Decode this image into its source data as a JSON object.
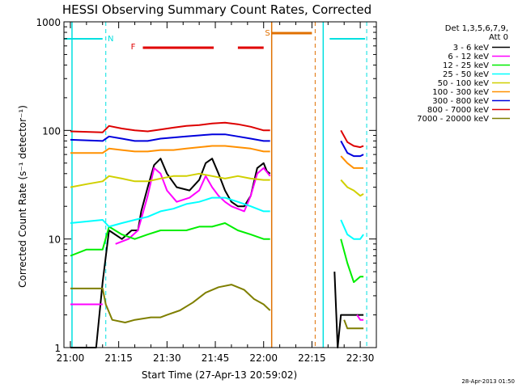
{
  "chart_data": {
    "type": "line",
    "title": "HESSI Observing Summary Count Rates, Corrected",
    "xlabel": "Start Time (27-Apr-13 20:59:02)",
    "ylabel": "Corrected Count Rate (s⁻¹ detector⁻¹)",
    "yscale": "log",
    "ylim": [
      1,
      1000
    ],
    "xlim_minutes": [
      -2,
      95
    ],
    "x_tick_labels": [
      "21:00",
      "21:15",
      "21:30",
      "21:45",
      "22:00",
      "22:15",
      "22:30"
    ],
    "x_tick_minutes": [
      0,
      15,
      30,
      45,
      60,
      75,
      90
    ],
    "y_tick_labels": [
      "1",
      "10",
      "100",
      "1000"
    ],
    "y_tick_values": [
      1,
      10,
      100,
      1000
    ],
    "grid": false,
    "legend_position": "right",
    "legend_header": [
      "Det 1,3,5,6,7,9,",
      "Att 0"
    ],
    "footer_date": "28-Apr-2013 01:50",
    "annotations": [
      {
        "text": "N",
        "color": "#00e0e0"
      },
      {
        "text": "F",
        "color": "#e00000"
      },
      {
        "text": "S",
        "color": "#e07000"
      }
    ],
    "series": [
      {
        "name": "3 - 6 keV",
        "color": "#000000",
        "points": [
          [
            0,
            1
          ],
          [
            8,
            1
          ],
          [
            10,
            4
          ],
          [
            12,
            12
          ],
          [
            16,
            10
          ],
          [
            19,
            12
          ],
          [
            21,
            12
          ],
          [
            22,
            18
          ],
          [
            24,
            30
          ],
          [
            26,
            48
          ],
          [
            28,
            55
          ],
          [
            30,
            40
          ],
          [
            33,
            30
          ],
          [
            37,
            28
          ],
          [
            40,
            35
          ],
          [
            42,
            50
          ],
          [
            44,
            55
          ],
          [
            46,
            40
          ],
          [
            48,
            28
          ],
          [
            50,
            22
          ],
          [
            52,
            20
          ],
          [
            54,
            20
          ],
          [
            56,
            25
          ],
          [
            58,
            45
          ],
          [
            60,
            50
          ],
          [
            61,
            42
          ],
          [
            62,
            40
          ],
          [
            null,
            null
          ],
          [
            82,
            5
          ],
          [
            83,
            1
          ],
          [
            84,
            2
          ],
          [
            86,
            2
          ],
          [
            90,
            2
          ],
          [
            91,
            2
          ]
        ]
      },
      {
        "name": "6 - 12 keV",
        "color": "#ff00ff",
        "points": [
          [
            0,
            2.5
          ],
          [
            10,
            2.5
          ],
          [
            null,
            null
          ],
          [
            14,
            9
          ],
          [
            18,
            10
          ],
          [
            21,
            12
          ],
          [
            24,
            25
          ],
          [
            26,
            45
          ],
          [
            28,
            40
          ],
          [
            30,
            28
          ],
          [
            33,
            22
          ],
          [
            37,
            24
          ],
          [
            40,
            28
          ],
          [
            42,
            38
          ],
          [
            44,
            30
          ],
          [
            46,
            25
          ],
          [
            48,
            22
          ],
          [
            50,
            20
          ],
          [
            54,
            18
          ],
          [
            56,
            25
          ],
          [
            58,
            40
          ],
          [
            60,
            45
          ],
          [
            62,
            38
          ],
          [
            null,
            null
          ],
          [
            89,
            2
          ],
          [
            90,
            1.8
          ],
          [
            91,
            1.8
          ]
        ]
      },
      {
        "name": "12 - 25 keV",
        "color": "#00ee00",
        "points": [
          [
            0,
            7
          ],
          [
            5,
            8
          ],
          [
            10,
            8
          ],
          [
            12,
            13
          ],
          [
            16,
            11
          ],
          [
            20,
            10
          ],
          [
            24,
            11
          ],
          [
            28,
            12
          ],
          [
            32,
            12
          ],
          [
            36,
            12
          ],
          [
            40,
            13
          ],
          [
            44,
            13
          ],
          [
            48,
            14
          ],
          [
            52,
            12
          ],
          [
            56,
            11
          ],
          [
            60,
            10
          ],
          [
            62,
            10
          ],
          [
            null,
            null
          ],
          [
            84,
            10
          ],
          [
            86,
            6
          ],
          [
            88,
            4
          ],
          [
            90,
            4.5
          ],
          [
            91,
            4.5
          ]
        ]
      },
      {
        "name": "25 - 50 keV",
        "color": "#00ffff",
        "points": [
          [
            0,
            14
          ],
          [
            10,
            15
          ],
          [
            12,
            13
          ],
          [
            16,
            14
          ],
          [
            20,
            15
          ],
          [
            24,
            16
          ],
          [
            28,
            18
          ],
          [
            32,
            19
          ],
          [
            36,
            21
          ],
          [
            40,
            22
          ],
          [
            44,
            24
          ],
          [
            48,
            24
          ],
          [
            52,
            22
          ],
          [
            56,
            20
          ],
          [
            60,
            18
          ],
          [
            62,
            18
          ],
          [
            null,
            null
          ],
          [
            84,
            15
          ],
          [
            86,
            11
          ],
          [
            88,
            10
          ],
          [
            90,
            10
          ],
          [
            91,
            11
          ]
        ]
      },
      {
        "name": "50 - 100 keV",
        "color": "#d0d000",
        "points": [
          [
            0,
            30
          ],
          [
            5,
            32
          ],
          [
            10,
            34
          ],
          [
            12,
            38
          ],
          [
            16,
            36
          ],
          [
            20,
            34
          ],
          [
            24,
            34
          ],
          [
            28,
            36
          ],
          [
            32,
            38
          ],
          [
            36,
            38
          ],
          [
            40,
            40
          ],
          [
            44,
            38
          ],
          [
            48,
            36
          ],
          [
            52,
            38
          ],
          [
            56,
            36
          ],
          [
            60,
            35
          ],
          [
            62,
            35
          ],
          [
            null,
            null
          ],
          [
            84,
            35
          ],
          [
            86,
            30
          ],
          [
            88,
            28
          ],
          [
            90,
            25
          ],
          [
            91,
            26
          ]
        ]
      },
      {
        "name": "100 - 300 keV",
        "color": "#ff9000",
        "points": [
          [
            0,
            62
          ],
          [
            10,
            62
          ],
          [
            12,
            68
          ],
          [
            16,
            66
          ],
          [
            20,
            64
          ],
          [
            24,
            64
          ],
          [
            28,
            66
          ],
          [
            32,
            66
          ],
          [
            36,
            68
          ],
          [
            40,
            70
          ],
          [
            44,
            72
          ],
          [
            48,
            72
          ],
          [
            52,
            70
          ],
          [
            56,
            68
          ],
          [
            60,
            64
          ],
          [
            62,
            64
          ],
          [
            null,
            null
          ],
          [
            84,
            58
          ],
          [
            86,
            50
          ],
          [
            88,
            45
          ],
          [
            90,
            45
          ],
          [
            91,
            45
          ]
        ]
      },
      {
        "name": "300 - 800 keV",
        "color": "#0000dd",
        "points": [
          [
            0,
            82
          ],
          [
            10,
            80
          ],
          [
            12,
            88
          ],
          [
            16,
            84
          ],
          [
            20,
            80
          ],
          [
            24,
            80
          ],
          [
            28,
            84
          ],
          [
            32,
            86
          ],
          [
            36,
            88
          ],
          [
            40,
            90
          ],
          [
            44,
            92
          ],
          [
            48,
            92
          ],
          [
            52,
            88
          ],
          [
            56,
            84
          ],
          [
            60,
            80
          ],
          [
            62,
            80
          ],
          [
            null,
            null
          ],
          [
            84,
            80
          ],
          [
            86,
            62
          ],
          [
            88,
            58
          ],
          [
            90,
            58
          ],
          [
            91,
            60
          ]
        ]
      },
      {
        "name": "800 - 7000 keV",
        "color": "#dd0000",
        "points": [
          [
            0,
            98
          ],
          [
            10,
            96
          ],
          [
            12,
            110
          ],
          [
            16,
            104
          ],
          [
            20,
            100
          ],
          [
            24,
            98
          ],
          [
            28,
            102
          ],
          [
            32,
            106
          ],
          [
            36,
            110
          ],
          [
            40,
            112
          ],
          [
            44,
            116
          ],
          [
            48,
            118
          ],
          [
            52,
            114
          ],
          [
            56,
            108
          ],
          [
            60,
            100
          ],
          [
            62,
            100
          ],
          [
            null,
            null
          ],
          [
            84,
            100
          ],
          [
            86,
            78
          ],
          [
            88,
            72
          ],
          [
            90,
            70
          ],
          [
            91,
            72
          ]
        ]
      },
      {
        "name": "7000 - 20000 keV",
        "color": "#7f7f00",
        "points": [
          [
            0,
            3.5
          ],
          [
            10,
            3.5
          ],
          [
            11,
            2.5
          ],
          [
            13,
            1.8
          ],
          [
            17,
            1.7
          ],
          [
            20,
            1.8
          ],
          [
            25,
            1.9
          ],
          [
            28,
            1.9
          ],
          [
            30,
            2
          ],
          [
            34,
            2.2
          ],
          [
            38,
            2.6
          ],
          [
            42,
            3.2
          ],
          [
            46,
            3.6
          ],
          [
            50,
            3.8
          ],
          [
            54,
            3.4
          ],
          [
            57,
            2.8
          ],
          [
            60,
            2.5
          ],
          [
            62,
            2.2
          ],
          [
            null,
            null
          ],
          [
            85,
            1.8
          ],
          [
            86,
            1.5
          ],
          [
            88,
            1.5
          ],
          [
            90,
            1.5
          ],
          [
            91,
            1.5
          ]
        ]
      }
    ]
  }
}
